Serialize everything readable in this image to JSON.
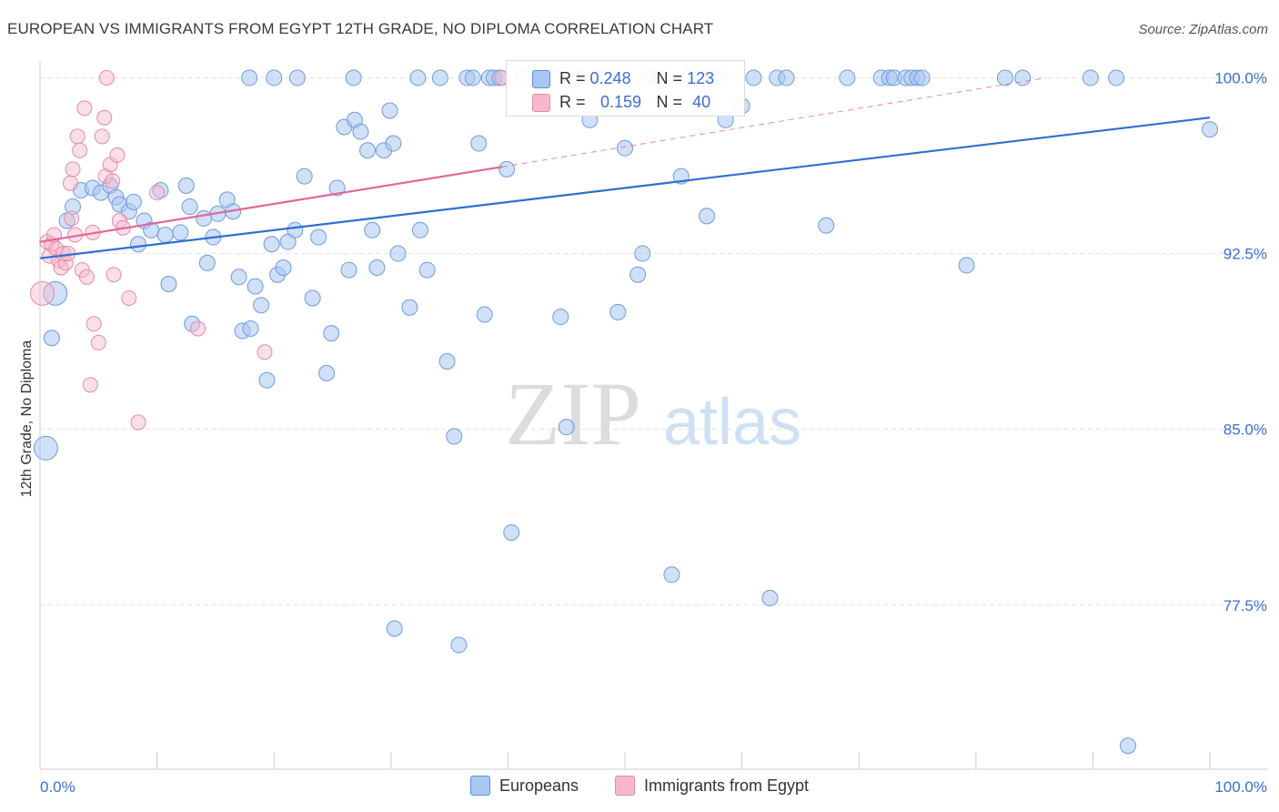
{
  "title": "EUROPEAN VS IMMIGRANTS FROM EGYPT 12TH GRADE, NO DIPLOMA CORRELATION CHART",
  "source": "Source: ZipAtlas.com",
  "watermark": {
    "zip": "ZIP",
    "atlas": "atlas"
  },
  "colors": {
    "blue": "#2f6fd0",
    "blue_fill": "#a9c7f0",
    "pink": "#e0689a",
    "pink_fill": "#f7b8cd",
    "axis_text": "#3a6fd1"
  },
  "legend": {
    "europeans": "Europeans",
    "egypt": "Immigrants from Egypt"
  },
  "stats": {
    "blue": {
      "r_label": "R =",
      "r_value": "0.248",
      "n_label": "N =",
      "n_value": "123"
    },
    "pink": {
      "r_label": "R =",
      "r_value": "0.159",
      "n_label": "N =",
      "n_value": "40"
    }
  },
  "chart_data": {
    "type": "scatter",
    "title": "EUROPEAN VS IMMIGRANTS FROM EGYPT 12TH GRADE, NO DIPLOMA CORRELATION CHART",
    "xlabel": "",
    "ylabel": "12th Grade, No Diploma",
    "xlim": [
      0,
      100
    ],
    "ylim": [
      70.5,
      100.6
    ],
    "x_tick_labels": [
      "0.0%",
      "100.0%"
    ],
    "y_ticks": [
      77.5,
      85.0,
      92.5,
      100.0
    ],
    "y_tick_labels": [
      "77.5%",
      "85.0%",
      "92.5%",
      "100.0%"
    ],
    "grid": true,
    "legend_position": "bottom-center",
    "series": [
      {
        "name": "Europeans",
        "color": "#2f6fd0",
        "r": 0.248,
        "n": 123,
        "trend": {
          "x0": 0,
          "y0": 92.3,
          "x1": 100,
          "y1": 98.3
        },
        "points": [
          [
            0.5,
            84.2
          ],
          [
            1.0,
            88.9
          ],
          [
            1.3,
            90.8
          ],
          [
            2.3,
            93.9
          ],
          [
            2.8,
            94.5
          ],
          [
            3.5,
            95.2
          ],
          [
            4.5,
            95.3
          ],
          [
            5.2,
            95.1
          ],
          [
            6.0,
            95.4
          ],
          [
            6.5,
            94.9
          ],
          [
            6.8,
            94.6
          ],
          [
            7.6,
            94.3
          ],
          [
            8.0,
            94.7
          ],
          [
            8.4,
            92.9
          ],
          [
            8.9,
            93.9
          ],
          [
            9.5,
            93.5
          ],
          [
            10.3,
            95.2
          ],
          [
            10.7,
            93.3
          ],
          [
            11.0,
            91.2
          ],
          [
            12.0,
            93.4
          ],
          [
            12.5,
            95.4
          ],
          [
            12.8,
            94.5
          ],
          [
            13.0,
            89.5
          ],
          [
            14.0,
            94.0
          ],
          [
            14.3,
            92.1
          ],
          [
            14.8,
            93.2
          ],
          [
            15.2,
            94.2
          ],
          [
            16.0,
            94.8
          ],
          [
            16.5,
            94.3
          ],
          [
            17.0,
            91.5
          ],
          [
            17.3,
            89.2
          ],
          [
            18.0,
            89.3
          ],
          [
            18.4,
            91.1
          ],
          [
            18.9,
            90.3
          ],
          [
            19.4,
            87.1
          ],
          [
            19.8,
            92.9
          ],
          [
            20.3,
            91.6
          ],
          [
            20.8,
            91.9
          ],
          [
            21.2,
            93.0
          ],
          [
            21.8,
            93.5
          ],
          [
            22.6,
            95.8
          ],
          [
            23.3,
            90.6
          ],
          [
            23.8,
            93.2
          ],
          [
            24.5,
            87.4
          ],
          [
            24.9,
            89.1
          ],
          [
            25.4,
            95.3
          ],
          [
            26.0,
            97.9
          ],
          [
            26.4,
            91.8
          ],
          [
            26.9,
            98.2
          ],
          [
            27.4,
            97.7
          ],
          [
            28.0,
            96.9
          ],
          [
            28.4,
            93.5
          ],
          [
            28.8,
            91.9
          ],
          [
            29.4,
            96.9
          ],
          [
            29.9,
            98.6
          ],
          [
            30.2,
            97.2
          ],
          [
            30.6,
            92.5
          ],
          [
            31.6,
            90.2
          ],
          [
            32.3,
            100.0
          ],
          [
            32.5,
            93.5
          ],
          [
            33.1,
            91.8
          ],
          [
            34.2,
            100.0
          ],
          [
            34.8,
            87.9
          ],
          [
            35.4,
            84.7
          ],
          [
            35.8,
            75.8
          ],
          [
            36.5,
            100.0
          ],
          [
            37.0,
            100.0
          ],
          [
            37.5,
            97.2
          ],
          [
            38.0,
            89.9
          ],
          [
            38.4,
            100.0
          ],
          [
            38.8,
            100.0
          ],
          [
            39.3,
            100.0
          ],
          [
            39.9,
            96.1
          ],
          [
            40.3,
            80.6
          ],
          [
            41.3,
            100.0
          ],
          [
            43.0,
            100.0
          ],
          [
            44.0,
            100.0
          ],
          [
            44.5,
            89.8
          ],
          [
            45.0,
            85.1
          ],
          [
            46.0,
            100.0
          ],
          [
            47.0,
            98.2
          ],
          [
            48.0,
            100.0
          ],
          [
            49.4,
            90.0
          ],
          [
            50.0,
            97.0
          ],
          [
            51.1,
            91.6
          ],
          [
            51.5,
            92.5
          ],
          [
            52.0,
            100.0
          ],
          [
            53.0,
            100.0
          ],
          [
            54.0,
            78.8
          ],
          [
            54.8,
            95.8
          ],
          [
            55.5,
            100.0
          ],
          [
            56.5,
            100.0
          ],
          [
            57.0,
            94.1
          ],
          [
            58.0,
            100.0
          ],
          [
            58.6,
            98.2
          ],
          [
            60.0,
            98.8
          ],
          [
            61.0,
            100.0
          ],
          [
            62.4,
            77.8
          ],
          [
            63.0,
            100.0
          ],
          [
            63.8,
            100.0
          ],
          [
            67.2,
            93.7
          ],
          [
            69.0,
            100.0
          ],
          [
            71.9,
            100.0
          ],
          [
            72.6,
            100.0
          ],
          [
            73.0,
            100.0
          ],
          [
            74.0,
            100.0
          ],
          [
            74.5,
            100.0
          ],
          [
            75.0,
            100.0
          ],
          [
            75.4,
            100.0
          ],
          [
            79.2,
            92.0
          ],
          [
            82.5,
            100.0
          ],
          [
            84.0,
            100.0
          ],
          [
            89.8,
            100.0
          ],
          [
            92.0,
            100.0
          ],
          [
            100.0,
            97.8
          ],
          [
            93.0,
            71.5
          ],
          [
            30.3,
            76.5
          ],
          [
            17.9,
            100.0
          ],
          [
            20.0,
            100.0
          ],
          [
            22.0,
            100.0
          ],
          [
            49.0,
            100.0
          ],
          [
            26.8,
            100.0
          ]
        ],
        "sizes": {
          "0.5,84.2": "large",
          "1.0,88.9": "large",
          "1.3,90.8": "large"
        }
      },
      {
        "name": "Immigrants from Egypt",
        "color": "#e0689a",
        "r": 0.159,
        "n": 40,
        "trend": {
          "x0": 0,
          "y0": 93.0,
          "x1": 39.5,
          "y1": 96.2
        },
        "trend_extension": {
          "x0": 39.5,
          "y0": 96.2,
          "x1": 86,
          "y1": 100.0
        },
        "points": [
          [
            0.2,
            90.8
          ],
          [
            0.6,
            93.0
          ],
          [
            0.8,
            92.4
          ],
          [
            1.0,
            92.9
          ],
          [
            1.2,
            93.3
          ],
          [
            1.4,
            92.7
          ],
          [
            1.6,
            92.2
          ],
          [
            1.8,
            91.9
          ],
          [
            2.0,
            92.5
          ],
          [
            2.2,
            92.1
          ],
          [
            2.4,
            92.5
          ],
          [
            2.7,
            94.0
          ],
          [
            2.6,
            95.5
          ],
          [
            2.8,
            96.1
          ],
          [
            3.0,
            93.3
          ],
          [
            3.2,
            97.5
          ],
          [
            3.4,
            96.9
          ],
          [
            3.6,
            91.8
          ],
          [
            3.8,
            98.7
          ],
          [
            4.0,
            91.5
          ],
          [
            4.3,
            86.9
          ],
          [
            4.5,
            93.4
          ],
          [
            4.6,
            89.5
          ],
          [
            5.0,
            88.7
          ],
          [
            5.3,
            97.5
          ],
          [
            5.5,
            98.3
          ],
          [
            5.6,
            95.8
          ],
          [
            5.7,
            100.0
          ],
          [
            6.0,
            96.3
          ],
          [
            6.2,
            95.6
          ],
          [
            6.3,
            91.6
          ],
          [
            6.6,
            96.7
          ],
          [
            6.8,
            93.9
          ],
          [
            7.1,
            93.6
          ],
          [
            7.6,
            90.6
          ],
          [
            8.4,
            85.3
          ],
          [
            10.0,
            95.1
          ],
          [
            13.5,
            89.3
          ],
          [
            19.2,
            88.3
          ],
          [
            39.5,
            100.0
          ]
        ]
      }
    ]
  }
}
